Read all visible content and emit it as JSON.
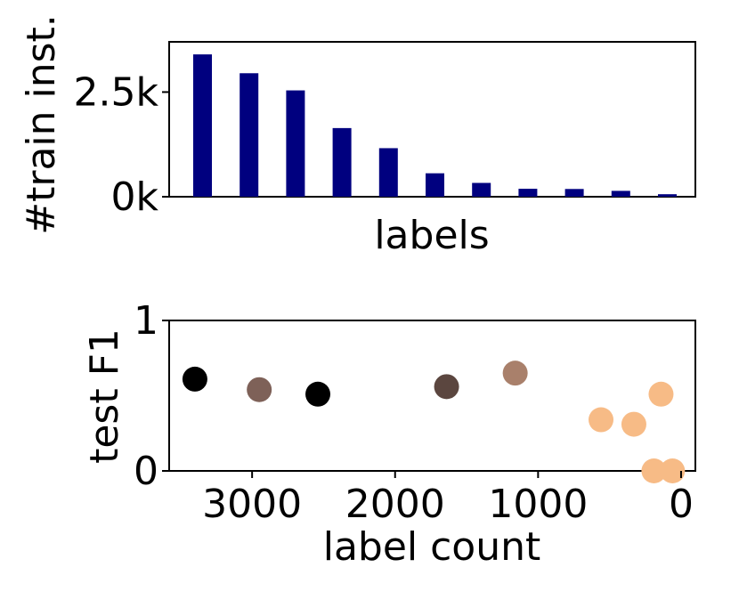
{
  "chart_data": [
    {
      "type": "bar",
      "xlabel": "labels",
      "ylabel": "#train inst.",
      "ylim": [
        0,
        3700
      ],
      "yticks": [
        {
          "value": 0,
          "label": "0k"
        },
        {
          "value": 2500,
          "label": "2.5k"
        }
      ],
      "bar_color": "#00007f",
      "values": [
        3400,
        2950,
        2540,
        1640,
        1160,
        560,
        330,
        190,
        185,
        140,
        60
      ]
    },
    {
      "type": "scatter",
      "xlabel": "label count",
      "ylabel": "test F1",
      "xlim": [
        3580,
        -100
      ],
      "ylim": [
        0,
        1
      ],
      "xticks": [
        {
          "value": 3000,
          "label": "3000"
        },
        {
          "value": 2000,
          "label": "2000"
        },
        {
          "value": 1000,
          "label": "1000"
        },
        {
          "value": 0,
          "label": "0"
        }
      ],
      "yticks": [
        {
          "value": 0,
          "label": "0"
        },
        {
          "value": 1,
          "label": "1"
        }
      ],
      "points": [
        {
          "x": 3400,
          "y": 0.61,
          "color": "#000000"
        },
        {
          "x": 2950,
          "y": 0.54,
          "color": "#7e6158"
        },
        {
          "x": 2540,
          "y": 0.51,
          "color": "#000000"
        },
        {
          "x": 1640,
          "y": 0.56,
          "color": "#5b463f"
        },
        {
          "x": 1160,
          "y": 0.65,
          "color": "#a9806b"
        },
        {
          "x": 560,
          "y": 0.34,
          "color": "#f7bb86"
        },
        {
          "x": 330,
          "y": 0.31,
          "color": "#f7bb86"
        },
        {
          "x": 190,
          "y": 0.0,
          "color": "#f7bb86"
        },
        {
          "x": 140,
          "y": 0.51,
          "color": "#f7bb86"
        },
        {
          "x": 60,
          "y": 0.0,
          "color": "#f7bb86"
        }
      ]
    }
  ]
}
